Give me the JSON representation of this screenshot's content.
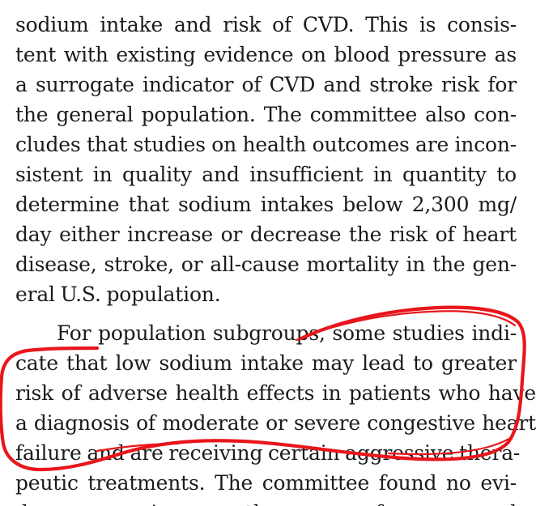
{
  "paragraph1": {
    "lines": [
      "sodium intake and risk of CVD. This is consis-",
      "tent with existing evidence on blood pressure as",
      "a surrogate indicator of CVD and stroke risk for",
      "the general population. The committee also con-",
      "cludes that studies on health outcomes are incon-",
      "sistent in quality and insufficient in quantity to",
      "determine that sodium intakes below 2,300 mg/",
      "day either increase or decrease the risk of heart",
      "disease, stroke, or all-cause mortality in the gen-",
      "eral U.S. population."
    ]
  },
  "paragraph2": {
    "lines": [
      "For population subgroups, some studies indi-",
      "cate that low sodium intake may lead to greater",
      "risk of adverse health effects in patients who have",
      "a diagnosis of moderate or severe congestive heart",
      "failure and are receiving certain aggressive thera-",
      "peutic treatments. The committee found no evi-",
      "dence in these for and"
    ]
  },
  "annotation": {
    "color": "#e8161b"
  }
}
